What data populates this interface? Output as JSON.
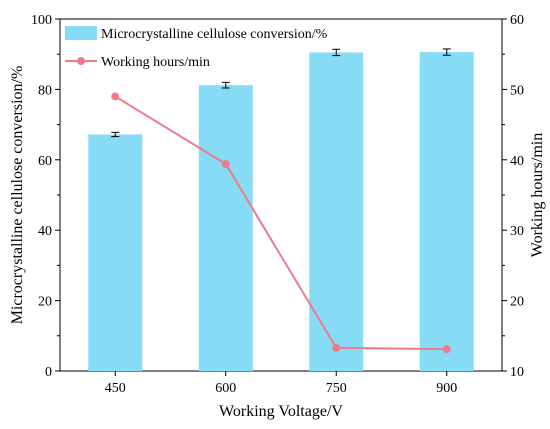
{
  "chart_data": {
    "type": "bar+line",
    "categories": [
      "450",
      "600",
      "750",
      "900"
    ],
    "xlabel": "Working Voltage/V",
    "ylabel_left": "Microcrystalline cellulose conversion/%",
    "ylabel_right": "Working hours/min",
    "ylim_left": [
      0,
      100
    ],
    "ylim_right": [
      10,
      60
    ],
    "yticks_left": [
      "0",
      "20",
      "40",
      "60",
      "80",
      "100"
    ],
    "yticks_right": [
      "10",
      "20",
      "30",
      "40",
      "50",
      "60"
    ],
    "legend_position": "top-left",
    "series": [
      {
        "name": "Microcrystalline cellulose conversion/%",
        "type": "bar",
        "axis": "left",
        "color": "#87DCF5",
        "values": [
          67.2,
          81.2,
          90.5,
          90.6
        ],
        "errors": [
          0.6,
          0.8,
          0.9,
          0.9
        ]
      },
      {
        "name": "Working hours/min",
        "type": "line",
        "axis": "right",
        "color": "#F07A8A",
        "values": [
          49.0,
          39.4,
          13.3,
          13.1
        ]
      }
    ]
  }
}
